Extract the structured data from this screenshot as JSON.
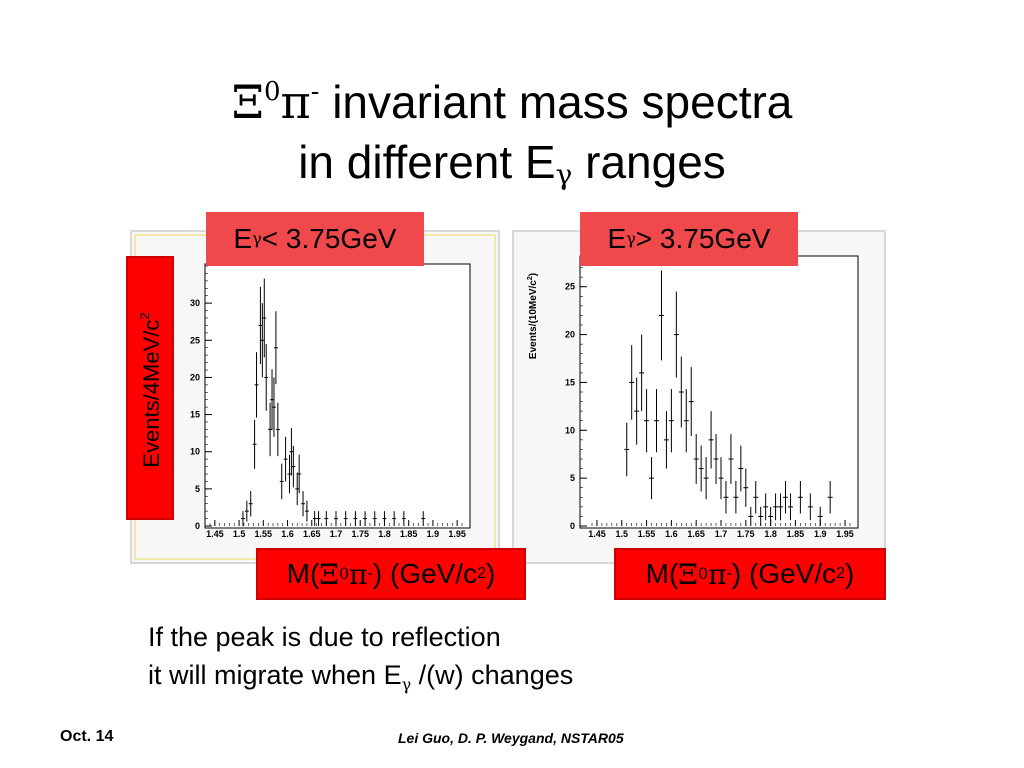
{
  "title": {
    "line1_xi": "Ξ",
    "line1_zero": "0",
    "line1_pi": "π",
    "line1_minus": "-",
    "line1_rest": " invariant mass spectra",
    "line2_pre": "in different E",
    "line2_gamma": "γ",
    "line2_post": " ranges"
  },
  "panels": [
    {
      "label_e": "E",
      "label_gamma": "γ",
      "label_rest": "< 3.75GeV"
    },
    {
      "label_e": "E",
      "label_gamma": "γ",
      "label_rest": "> 3.75GeV"
    }
  ],
  "ylabel_box": {
    "text": "Events/4MeV/c",
    "sup": "2"
  },
  "xlabel_box": {
    "pre": "M(",
    "xi": "Ξ",
    "zero": "0",
    "pi": "π",
    "minus": "-",
    "post": ") (GeV/c",
    "sup": "2",
    "close": ")"
  },
  "note": {
    "line1": "If the peak is due to reflection",
    "line2_pre": " it will migrate when E",
    "line2_gamma": "γ",
    "line2_post": " /(w) changes"
  },
  "footer": {
    "date": "Oct. 14",
    "authors": "Lei Guo, D. P. Weygand, NSTAR05"
  },
  "chart_data": [
    {
      "type": "scatter",
      "title": "",
      "xlabel": "",
      "ylabel": "",
      "xlim": [
        1.44,
        1.96
      ],
      "ylim": [
        0,
        35
      ],
      "xticks": [
        "1.45",
        "1.5",
        "1.55",
        "1.6",
        "1.65",
        "1.7",
        "1.75",
        "1.8",
        "1.85",
        "1.9",
        "1.95"
      ],
      "yticks": [
        "0",
        "5",
        "10",
        "15",
        "20",
        "25",
        "30"
      ],
      "x": [
        1.508,
        1.516,
        1.524,
        1.532,
        1.536,
        1.544,
        1.548,
        1.552,
        1.556,
        1.564,
        1.568,
        1.572,
        1.576,
        1.58,
        1.588,
        1.596,
        1.604,
        1.608,
        1.612,
        1.62,
        1.624,
        1.632,
        1.64,
        1.656,
        1.664,
        1.68,
        1.7,
        1.72,
        1.74,
        1.76,
        1.78,
        1.8,
        1.82,
        1.84,
        1.88
      ],
      "y": [
        1,
        2,
        3,
        11,
        19,
        27,
        25,
        28,
        20,
        13,
        17,
        16,
        24,
        13,
        6,
        9,
        7,
        10,
        8,
        5,
        7,
        3,
        2,
        1,
        1,
        1,
        1,
        1,
        1,
        1,
        1,
        1,
        1,
        1,
        1
      ],
      "yerr": [
        1,
        1.4,
        1.7,
        3.3,
        4.4,
        5.2,
        5.0,
        5.3,
        4.5,
        3.6,
        4.1,
        4.0,
        4.9,
        3.6,
        2.4,
        3.0,
        2.6,
        3.2,
        2.8,
        2.2,
        2.6,
        1.7,
        1.4,
        1,
        1,
        1,
        1,
        1,
        1,
        1,
        1,
        1,
        1,
        1,
        1
      ]
    },
    {
      "type": "scatter",
      "title": "",
      "xlabel": "",
      "ylabel": "Events/(10MeV/c",
      "ylabel_sup": "2",
      "ylabel_close": ")",
      "xlim": [
        1.44,
        1.96
      ],
      "ylim": [
        0,
        28
      ],
      "xticks": [
        "1.45",
        "1.5",
        "1.55",
        "1.6",
        "1.65",
        "1.7",
        "1.75",
        "1.8",
        "1.85",
        "1.9",
        "1.95"
      ],
      "yticks": [
        "0",
        "5",
        "10",
        "15",
        "20",
        "25"
      ],
      "x": [
        1.51,
        1.52,
        1.53,
        1.54,
        1.55,
        1.56,
        1.57,
        1.58,
        1.59,
        1.6,
        1.61,
        1.62,
        1.63,
        1.64,
        1.65,
        1.66,
        1.67,
        1.68,
        1.69,
        1.7,
        1.71,
        1.72,
        1.73,
        1.74,
        1.75,
        1.76,
        1.77,
        1.78,
        1.79,
        1.8,
        1.81,
        1.82,
        1.83,
        1.84,
        1.86,
        1.88,
        1.9,
        1.92
      ],
      "y": [
        8,
        15,
        12,
        16,
        11,
        5,
        11,
        22,
        9,
        11,
        20,
        14,
        11,
        13,
        7,
        6,
        5,
        9,
        7,
        5,
        3,
        7,
        3,
        6,
        4,
        1,
        3,
        1,
        2,
        1,
        2,
        2,
        3,
        2,
        3,
        2,
        1,
        3
      ],
      "yerr": [
        2.8,
        3.9,
        3.5,
        4.0,
        3.3,
        2.2,
        3.3,
        4.7,
        3.0,
        3.3,
        4.5,
        3.7,
        3.3,
        3.6,
        2.6,
        2.4,
        2.2,
        3.0,
        2.6,
        2.2,
        1.7,
        2.6,
        1.7,
        2.4,
        2.0,
        1,
        1.7,
        1,
        1.4,
        1,
        1.4,
        1.4,
        1.7,
        1.4,
        1.7,
        1.4,
        1,
        1.7
      ]
    }
  ]
}
